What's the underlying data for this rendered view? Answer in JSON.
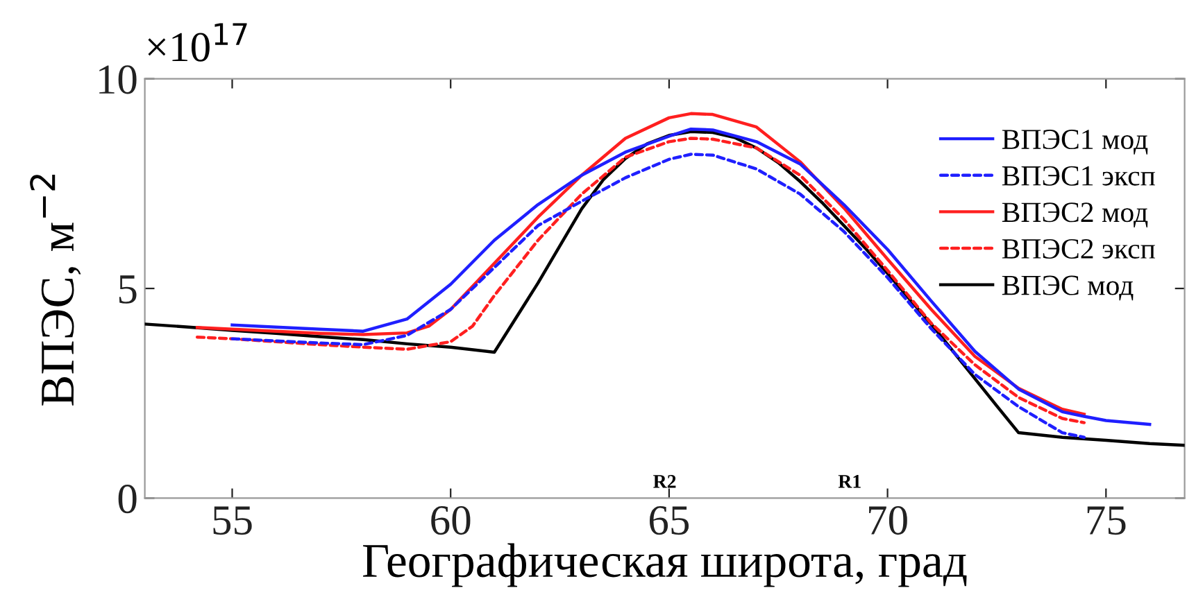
{
  "chart_data": {
    "type": "line",
    "xlabel": "Географическая широта, град",
    "ylabel": "ВПЭС, м$^{−2}$",
    "xlim": [
      53,
      76.8
    ],
    "xticks": [
      55,
      60,
      65,
      70,
      75
    ],
    "ylim": [
      0,
      10
    ],
    "yticks": [
      0,
      5,
      10
    ],
    "grid": false,
    "legend": "top right",
    "marker": "none",
    "annotations": [
      "×10$^{17}$",
      "R2",
      "R1"
    ],
    "series": [
      {
        "name": "ВПЭС1 мод",
        "color": "#1f1fff",
        "line_style": "solid",
        "x": [
          55,
          56,
          57,
          58,
          59,
          60,
          61,
          62,
          63,
          64,
          65,
          65.5,
          66,
          67,
          68,
          69,
          70,
          71,
          72,
          73,
          74,
          74.5,
          75,
          76
        ],
        "values": [
          4.13,
          4.08,
          4.03,
          3.98,
          4.27,
          5.1,
          6.15,
          7.0,
          7.7,
          8.25,
          8.63,
          8.8,
          8.78,
          8.5,
          7.97,
          7.0,
          5.93,
          4.7,
          3.5,
          2.6,
          2.06,
          1.95,
          1.85,
          1.76
        ]
      },
      {
        "name": "ВПЭС1 эксп",
        "color": "#1f1fff",
        "line_style": "dashed",
        "x": [
          55,
          56,
          57,
          58,
          59,
          60,
          61,
          62,
          63,
          64,
          65,
          65.5,
          66,
          67,
          68,
          69,
          70,
          71,
          72,
          73,
          74,
          74.5
        ],
        "values": [
          3.8,
          3.75,
          3.7,
          3.66,
          3.88,
          4.5,
          5.5,
          6.5,
          7.08,
          7.64,
          8.08,
          8.2,
          8.18,
          7.85,
          7.25,
          6.36,
          5.26,
          4.04,
          2.95,
          2.18,
          1.56,
          1.45
        ]
      },
      {
        "name": "ВПЭС2 мод",
        "color": "#ff1f1f",
        "line_style": "solid",
        "x": [
          54.2,
          55,
          56,
          57,
          58,
          59,
          59.5,
          60,
          61,
          62,
          63,
          64,
          65,
          65.5,
          66,
          67,
          68,
          69,
          70,
          71,
          72,
          73,
          74,
          74.5
        ],
        "values": [
          4.07,
          4.03,
          3.98,
          3.93,
          3.9,
          3.94,
          4.1,
          4.5,
          5.6,
          6.7,
          7.7,
          8.58,
          9.07,
          9.17,
          9.15,
          8.85,
          8.02,
          6.92,
          5.7,
          4.5,
          3.38,
          2.62,
          2.12,
          2.0
        ]
      },
      {
        "name": "ВПЭС2 эксп",
        "color": "#ff1f1f",
        "line_style": "dashed",
        "x": [
          54.2,
          55,
          56,
          57,
          58,
          59,
          60,
          60.5,
          61,
          62,
          63,
          64,
          65,
          65.5,
          66,
          67,
          68,
          69,
          70,
          71,
          72,
          73,
          74,
          74.5
        ],
        "values": [
          3.84,
          3.8,
          3.73,
          3.66,
          3.6,
          3.55,
          3.73,
          4.1,
          4.83,
          6.15,
          7.25,
          8.13,
          8.5,
          8.58,
          8.56,
          8.35,
          7.7,
          6.65,
          5.43,
          4.17,
          3.18,
          2.4,
          1.9,
          1.8
        ]
      },
      {
        "name": "ВПЭС мод",
        "color": "#000000",
        "line_style": "solid",
        "x": [
          53,
          54,
          55,
          56,
          57,
          58,
          59,
          60,
          61,
          62,
          63,
          63.5,
          64,
          64.5,
          65,
          65.5,
          66,
          66.5,
          67,
          67.5,
          68,
          68.5,
          69,
          69.5,
          70,
          70.5,
          71,
          71.5,
          72,
          72.5,
          73,
          74,
          75,
          76,
          76.8
        ],
        "values": [
          4.15,
          4.08,
          4.0,
          3.93,
          3.85,
          3.78,
          3.68,
          3.6,
          3.48,
          5.13,
          6.9,
          7.6,
          8.1,
          8.45,
          8.65,
          8.74,
          8.72,
          8.6,
          8.35,
          8.0,
          7.55,
          7.05,
          6.5,
          5.95,
          5.36,
          4.75,
          4.15,
          3.5,
          2.85,
          2.2,
          1.56,
          1.45,
          1.38,
          1.3,
          1.26
        ]
      }
    ]
  }
}
